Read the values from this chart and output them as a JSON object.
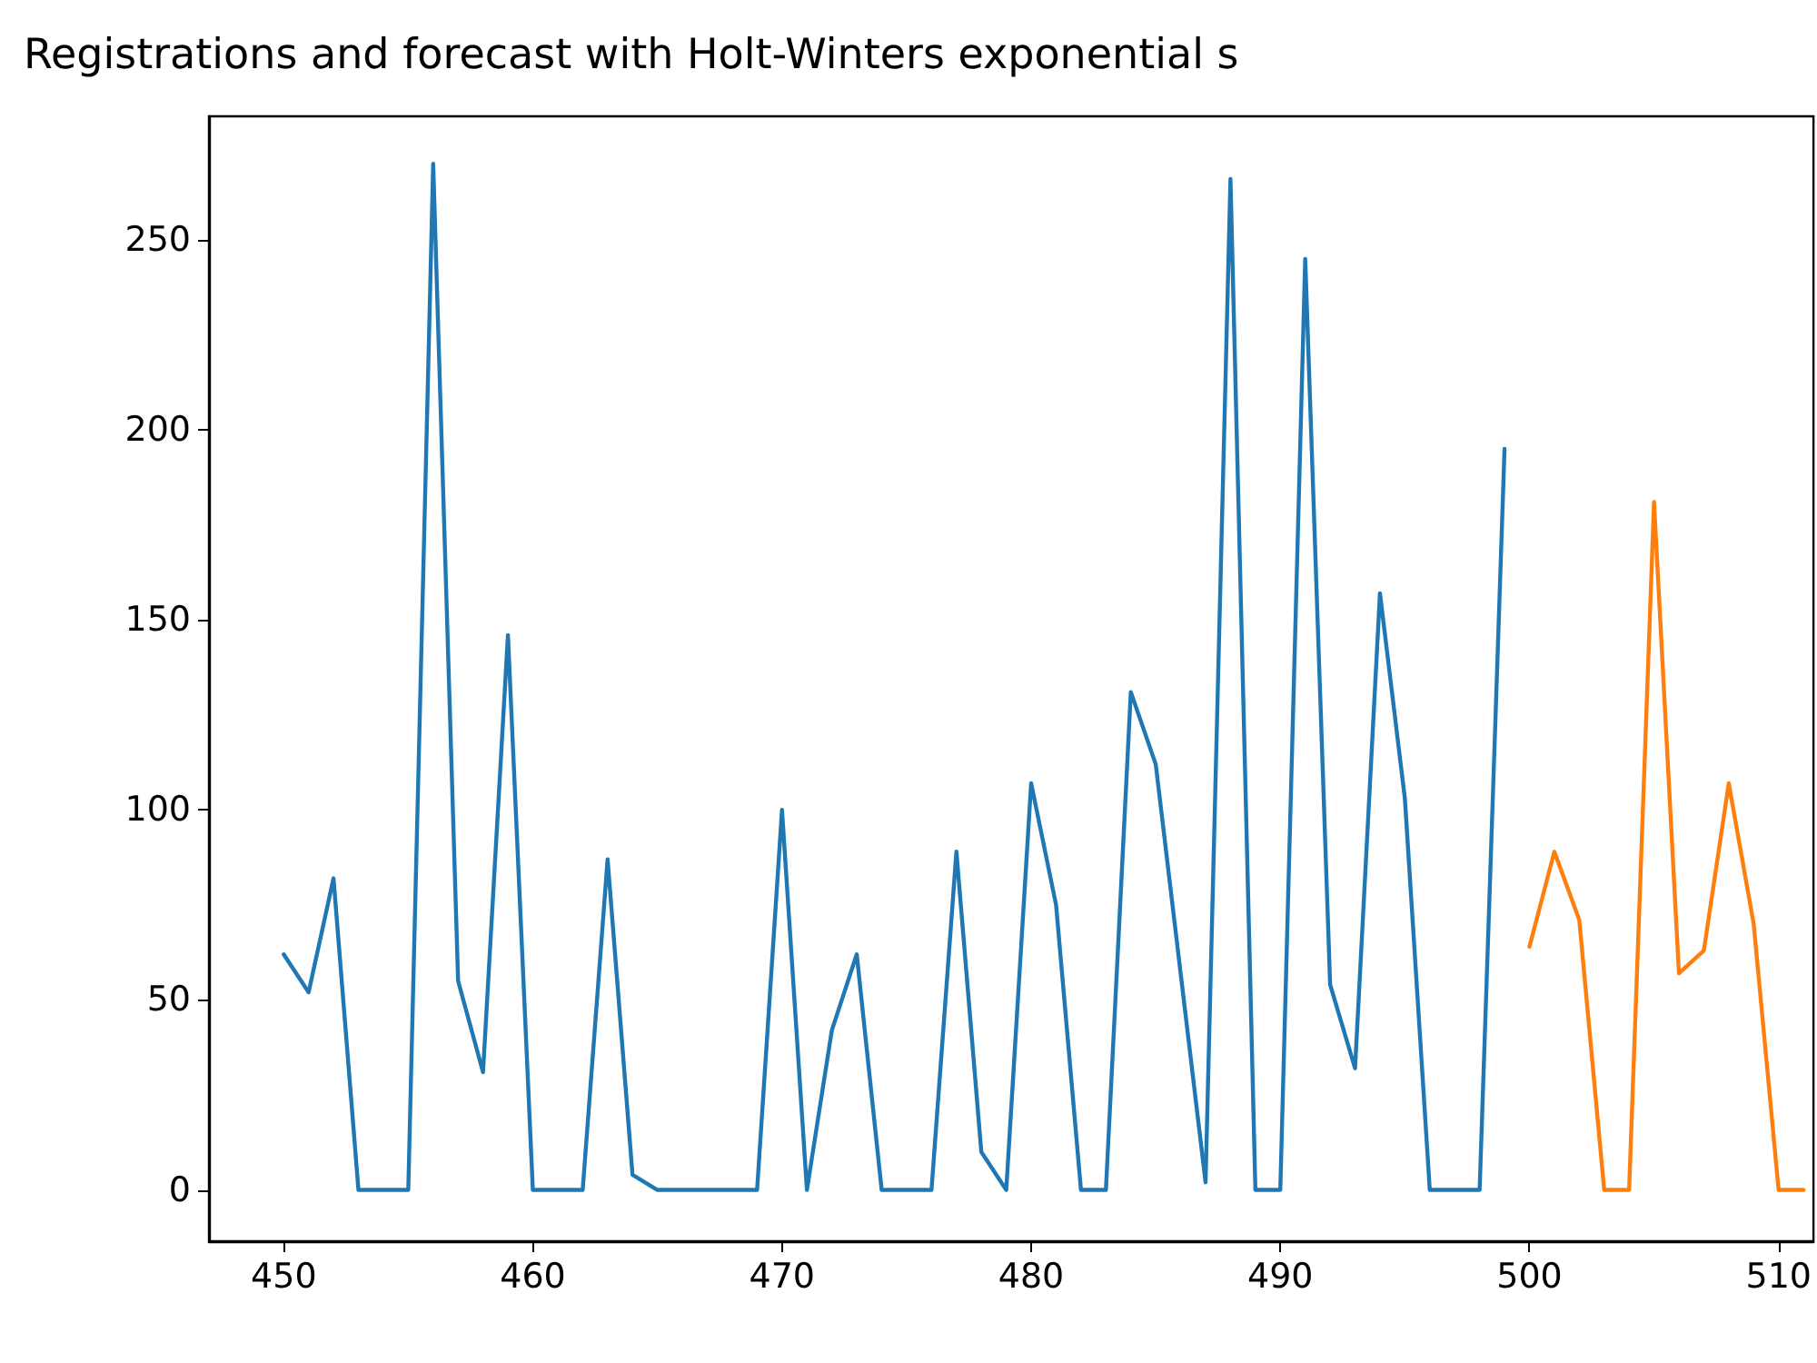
{
  "chart_data": {
    "type": "line",
    "title": "Registrations and forecast with Holt-Winters exponential s",
    "series": [
      {
        "color": "#1f77b4",
        "x": [
          450,
          451,
          452,
          453,
          454,
          455,
          456,
          457,
          458,
          459,
          460,
          461,
          462,
          463,
          464,
          465,
          466,
          467,
          468,
          469,
          470,
          471,
          472,
          473,
          474,
          475,
          476,
          477,
          478,
          479,
          480,
          481,
          482,
          483,
          484,
          485,
          486,
          487,
          488,
          489,
          490,
          491,
          492,
          493,
          494,
          495,
          496,
          497,
          498,
          499
        ],
        "values": [
          62,
          52,
          82,
          0,
          0,
          0,
          270,
          55,
          31,
          146,
          0,
          0,
          0,
          87,
          4,
          0,
          0,
          0,
          0,
          0,
          100,
          0,
          42,
          62,
          0,
          0,
          0,
          89,
          10,
          0,
          107,
          75,
          0,
          0,
          131,
          112,
          57,
          2,
          266,
          0,
          0,
          245,
          54,
          32,
          157,
          103,
          0,
          0,
          0,
          195
        ]
      },
      {
        "color": "#ff7f0e",
        "x": [
          500,
          501,
          502,
          503,
          504,
          505,
          506,
          507,
          508,
          509,
          510,
          511
        ],
        "values": [
          64,
          89,
          71,
          0,
          0,
          181,
          57,
          63,
          107,
          70,
          0,
          0
        ]
      }
    ],
    "xlim": [
      447,
      511.4
    ],
    "xticks": [
      450,
      460,
      470,
      480,
      490,
      500,
      510
    ],
    "ylim": [
      -13.5,
      282.5
    ],
    "yticks": [
      0,
      50,
      100,
      150,
      200,
      250
    ],
    "marker": "none",
    "line_style": "solid"
  }
}
